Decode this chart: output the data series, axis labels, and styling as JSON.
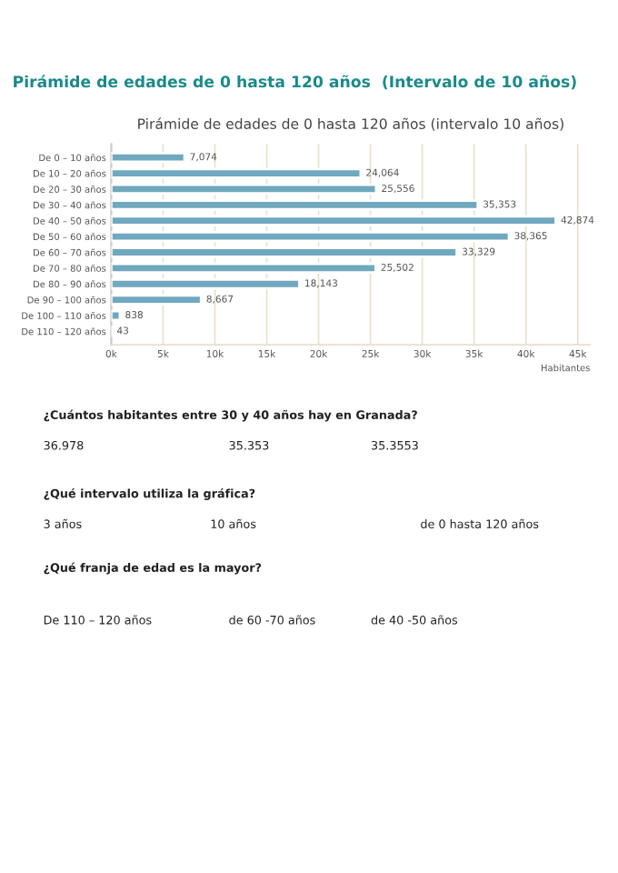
{
  "chart_data": {
    "type": "bar",
    "orientation": "horizontal",
    "title": "Pirámide de edades de 0 hasta 120 años  (Intervalo de 10 años)",
    "subtitle": "Pirámide de edades de 0 hasta 120 años (intervalo 10 años)",
    "xlabel": "Habitantes",
    "categories": [
      "De 0 – 10 años",
      "De 10 – 20 años",
      "De 20 – 30 años",
      "De 30 – 40 años",
      "De 40 – 50 años",
      "De 50 – 60 años",
      "De 60 – 70 años",
      "De 70 – 80 años",
      "De 80 – 90 años",
      "De 90 – 100 años",
      "De 100 – 110 años",
      "De 110 – 120 años"
    ],
    "values": [
      7074,
      24064,
      25556,
      35353,
      42874,
      38365,
      33329,
      25502,
      18143,
      8667,
      838,
      43
    ],
    "value_labels": [
      "7,074",
      "24,064",
      "25,556",
      "35,353",
      "42,874",
      "38,365",
      "33,329",
      "25,502",
      "18,143",
      "8,667",
      "838",
      "43"
    ],
    "color": "#6fa8bf",
    "xlim": [
      0,
      46200
    ],
    "xticks": [
      {
        "value": 0,
        "label": "0k"
      },
      {
        "value": 5000,
        "label": "5k"
      },
      {
        "value": 10000,
        "label": "10k"
      },
      {
        "value": 15000,
        "label": "15k"
      },
      {
        "value": 20000,
        "label": "20k"
      },
      {
        "value": 25000,
        "label": "25k"
      },
      {
        "value": 30000,
        "label": "30k"
      },
      {
        "value": 35000,
        "label": "35k"
      },
      {
        "value": 40000,
        "label": "40k"
      },
      {
        "value": 45000,
        "label": "45k"
      }
    ],
    "grid": "x",
    "annotations": [
      "¿Cuántos habitantes entre 30 y 40 años hay en Granada?",
      "36.978",
      "35.353",
      "35.3553",
      "¿Qué intervalo utiliza la gráfica?",
      "3 años",
      "10 años",
      "de 0 hasta 120 años",
      "¿Qué franja de edad es la mayor?",
      "De 110 – 120 años",
      "de 60 -70 años",
      "de 40 -50 años"
    ]
  }
}
